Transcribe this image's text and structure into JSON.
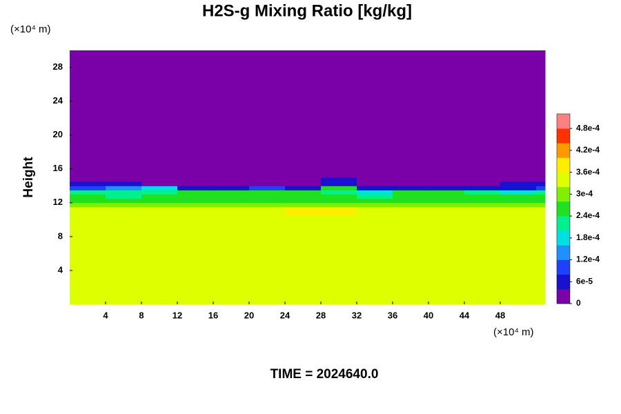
{
  "chart_data": {
    "type": "heatmap",
    "title": "H2S-g Mixing Ratio [kg/kg]",
    "y_label": "Height",
    "x_unit_label": "(×10⁴ m)",
    "y_unit_label": "(×10⁴ m)",
    "annotation": "TIME = 2024640.0",
    "xlim": [
      0,
      53
    ],
    "ylim": [
      0,
      30
    ],
    "xticks": [
      4,
      8,
      12,
      16,
      20,
      24,
      28,
      32,
      36,
      40,
      44,
      48
    ],
    "yticks": [
      4,
      8,
      12,
      16,
      20,
      24,
      28
    ],
    "x_edges": [
      0,
      4,
      8,
      12,
      16,
      20,
      24,
      28,
      32,
      36,
      40,
      44,
      48,
      52,
      53
    ],
    "y_edges": [
      0,
      10.5,
      11.5,
      12,
      12.5,
      13,
      13.5,
      14,
      14.5,
      15,
      30
    ],
    "z": [
      [
        0.00034,
        0.00034,
        0.00034,
        0.00034,
        0.00034,
        0.00034,
        0.00034,
        0.00034,
        0.00034,
        0.00034,
        0.00034,
        0.00034,
        0.00034,
        0.00034
      ],
      [
        0.00033,
        0.00033,
        0.00033,
        0.00034,
        0.00034,
        0.00035,
        0.00037,
        0.00037,
        0.00034,
        0.00033,
        0.00033,
        0.00033,
        0.00033,
        0.00033
      ],
      [
        0.0003,
        0.00031,
        0.0003,
        0.00031,
        0.00031,
        0.00031,
        0.00031,
        0.0003,
        0.00031,
        0.00031,
        0.0003,
        0.0003,
        0.0003,
        0.0003
      ],
      [
        0.00027,
        0.00027,
        0.00027,
        0.00027,
        0.00027,
        0.00027,
        0.00027,
        0.00027,
        0.00027,
        0.00027,
        0.00027,
        0.00027,
        0.00027,
        0.00027
      ],
      [
        0.00026,
        0.00022,
        0.00026,
        0.00026,
        0.00026,
        0.00026,
        0.00026,
        0.00026,
        0.00022,
        0.00026,
        0.00026,
        0.00026,
        0.00026,
        0.00026
      ],
      [
        0.00022,
        0.0002,
        0.00022,
        0.00024,
        0.00024,
        0.00024,
        0.00026,
        0.00022,
        0.00018,
        0.00024,
        0.00024,
        0.00022,
        0.00018,
        0.0002
      ],
      [
        0.0001,
        0.00014,
        0.00017,
        6e-05,
        6e-05,
        0.0001,
        6e-05,
        0.00024,
        6e-05,
        6e-05,
        6e-05,
        6e-05,
        6e-05,
        0.0001
      ],
      [
        5e-05,
        5e-05,
        2e-05,
        0,
        0,
        0,
        0,
        5e-05,
        0,
        0,
        0,
        0,
        5e-05,
        5e-05
      ],
      [
        0,
        0,
        0,
        0,
        0,
        0,
        0,
        5e-05,
        0,
        0,
        0,
        0,
        0,
        0
      ],
      [
        0,
        0,
        0,
        0,
        0,
        0,
        0,
        0,
        0,
        0,
        0,
        0,
        0,
        0
      ]
    ],
    "zlim": [
      0,
      0.00052
    ],
    "colors": [
      "#7a00a8",
      "#1a10d0",
      "#2040ff",
      "#1e90ff",
      "#00e0e0",
      "#00f090",
      "#20e020",
      "#80f000",
      "#ddff00",
      "#ffee00",
      "#ff9900",
      "#ff3300",
      "#ff8080"
    ],
    "zticks": [
      0,
      {
        "value": 6e-05,
        "label": "6e-5"
      },
      {
        "value": 0.00012,
        "label": "1.2e-4"
      },
      {
        "value": 0.00018,
        "label": "1.8e-4"
      },
      {
        "value": 0.00024,
        "label": "2.4e-4"
      },
      {
        "value": 0.0003,
        "label": "3e-4"
      },
      {
        "value": 0.00036,
        "label": "3.6e-4"
      },
      {
        "value": 0.00042,
        "label": "4.2e-4"
      },
      {
        "value": 0.00048,
        "label": "4.8e-4"
      }
    ]
  }
}
